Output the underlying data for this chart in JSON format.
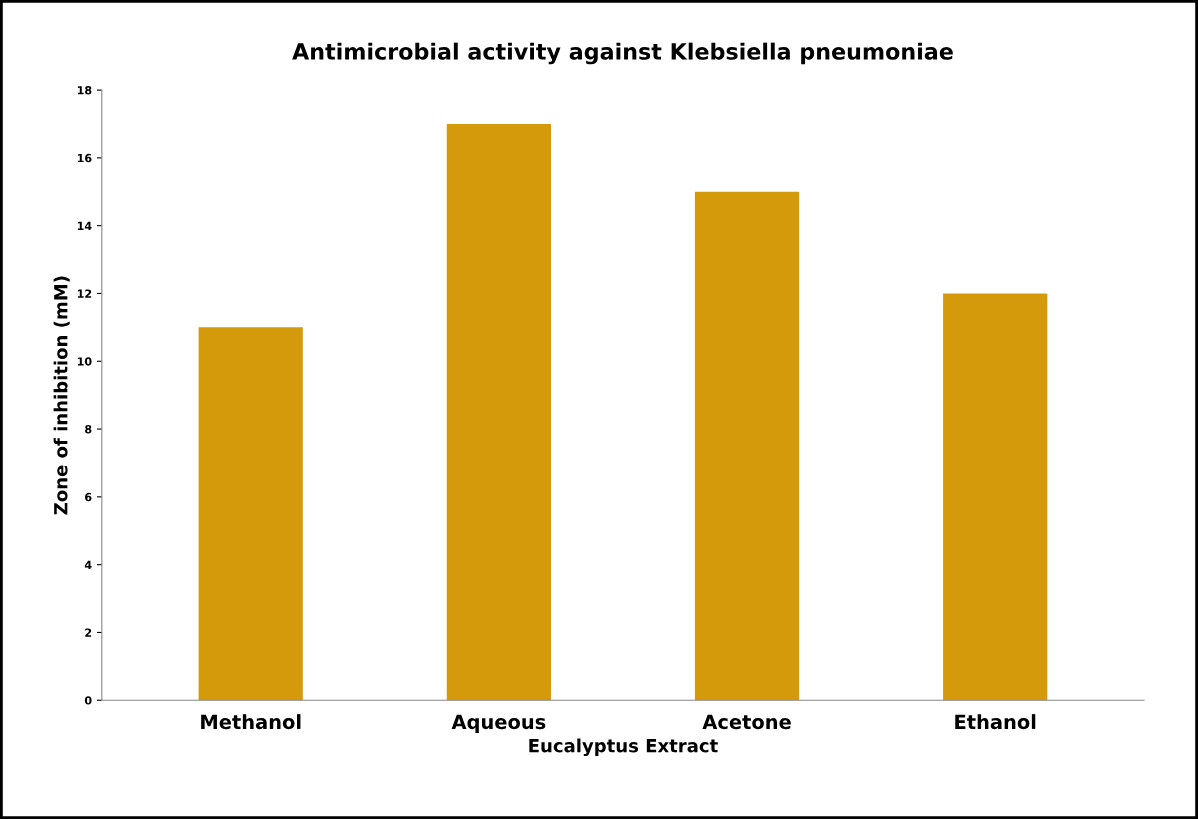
{
  "chart_data": {
    "type": "bar",
    "title": "Antimicrobial activity against Klebsiella pneumoniae",
    "xlabel": "Eucalyptus Extract",
    "ylabel": "Zone of inhibition (mM)",
    "categories": [
      "Methanol",
      "Aqueous",
      "Acetone",
      "Ethanol"
    ],
    "values": [
      11,
      17,
      15,
      12
    ],
    "color": "#d49a0c",
    "ylim": [
      0,
      18
    ],
    "yticks": [
      0,
      2,
      4,
      6,
      8,
      10,
      12,
      14,
      16,
      18
    ],
    "grid": false,
    "legend": false
  }
}
